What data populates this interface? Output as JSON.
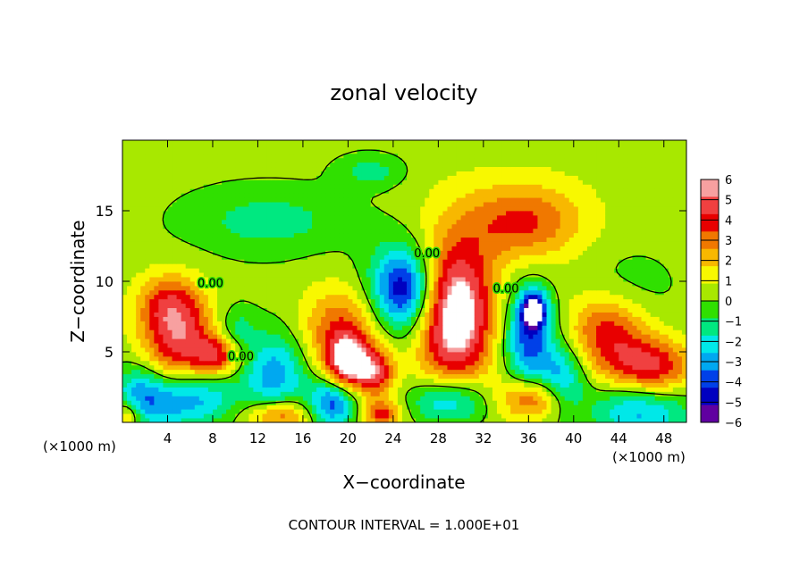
{
  "chart_data": {
    "type": "heatmap",
    "title": "zonal velocity",
    "xlabel": "X−coordinate",
    "ylabel": "Z−coordinate",
    "x_unit_left": "(×1000 m)",
    "x_unit_right": "(×1000 m)",
    "footer": "CONTOUR INTERVAL = 1.000E+01",
    "xlim": [
      0,
      50
    ],
    "ylim": [
      0,
      20
    ],
    "xticks": [
      4,
      8,
      12,
      16,
      20,
      24,
      28,
      32,
      36,
      40,
      44,
      48
    ],
    "yticks": [
      5,
      10,
      15
    ],
    "colorbar": {
      "ticks": [
        6,
        5,
        4,
        3,
        2,
        1,
        0,
        -1,
        -2,
        -3,
        -4,
        -5,
        -6
      ],
      "colors": [
        "#f7a0a0",
        "#f04040",
        "#e80000",
        "#f07800",
        "#f8b800",
        "#f8f800",
        "#a8e800",
        "#30e000",
        "#00e880",
        "#00e8e8",
        "#00a8f0",
        "#0040e8",
        "#0000c0",
        "#6000a0"
      ]
    },
    "contour_labels": [
      {
        "text": "0.00",
        "x": 10.5,
        "y": 4.4
      },
      {
        "text": "0.00",
        "x": 27,
        "y": 11.7
      },
      {
        "text": "0.00",
        "x": 34,
        "y": 9.2
      },
      {
        "text": "0.00",
        "x": 7.8,
        "y": 9.6
      }
    ],
    "features": [
      {
        "u": 5,
        "x": 29.7,
        "y": 8,
        "sx": 2.2,
        "sy": 3.2
      },
      {
        "u": 3,
        "x": 29,
        "y": 6,
        "sx": 2.8,
        "sy": 4.8
      },
      {
        "u": -5,
        "x": 25,
        "y": 9.5,
        "sx": 1.8,
        "sy": 1.9
      },
      {
        "u": -2,
        "x": 24.5,
        "y": 9,
        "sx": 2.6,
        "sy": 3
      },
      {
        "u": 3,
        "x": 35.5,
        "y": 14.2,
        "sx": 3.5,
        "sy": 1.8
      },
      {
        "u": 1,
        "x": 35,
        "y": 14.5,
        "sx": 6,
        "sy": 3
      },
      {
        "u": -1.8,
        "x": 13,
        "y": 14.3,
        "sx": 5,
        "sy": 1.6
      },
      {
        "u": -1.8,
        "x": 22,
        "y": 17.8,
        "sx": 2,
        "sy": 0.8
      },
      {
        "u": -1.5,
        "x": 44,
        "y": 9.3,
        "sx": 3,
        "sy": 2
      },
      {
        "u": -5,
        "x": 36,
        "y": 6,
        "sx": 1.5,
        "sy": 2.5
      },
      {
        "u": -6,
        "x": 36.5,
        "y": 8,
        "sx": 0.8,
        "sy": 0.9
      },
      {
        "u": 4.5,
        "x": 36.5,
        "y": 1.7,
        "sx": 2.2,
        "sy": 1.1
      },
      {
        "u": -4,
        "x": 39,
        "y": 3,
        "sx": 1.5,
        "sy": 1.8
      },
      {
        "u": 4.5,
        "x": 43,
        "y": 6.5,
        "sx": 2.5,
        "sy": 2.2
      },
      {
        "u": 5,
        "x": 47,
        "y": 3.8,
        "sx": 2.5,
        "sy": 1.5
      },
      {
        "u": 5,
        "x": 5,
        "y": 5.8,
        "sx": 2.3,
        "sy": 2.3
      },
      {
        "u": 3,
        "x": 4,
        "y": 8.5,
        "sx": 2,
        "sy": 1.5
      },
      {
        "u": -4,
        "x": 4.8,
        "y": 1.6,
        "sx": 2.5,
        "sy": 1.4
      },
      {
        "u": -3,
        "x": 1.5,
        "y": 2,
        "sx": 1.5,
        "sy": 1.5
      },
      {
        "u": -4,
        "x": 13.5,
        "y": 3.5,
        "sx": 2,
        "sy": 2
      },
      {
        "u": -2,
        "x": 10,
        "y": 6.5,
        "sx": 1.2,
        "sy": 1.2
      },
      {
        "u": 6,
        "x": 20,
        "y": 4.2,
        "sx": 1.3,
        "sy": 1.3
      },
      {
        "u": 4,
        "x": 19.5,
        "y": 6.5,
        "sx": 2.5,
        "sy": 2.2
      },
      {
        "u": -5,
        "x": 18.6,
        "y": 1.4,
        "sx": 1.5,
        "sy": 1.2
      },
      {
        "u": 4.5,
        "x": 22.5,
        "y": 3.5,
        "sx": 1.2,
        "sy": 1.2
      },
      {
        "u": 4,
        "x": 23,
        "y": 0.6,
        "sx": 1.2,
        "sy": 0.7
      },
      {
        "u": -5,
        "x": 29,
        "y": 1.5,
        "sx": 2.5,
        "sy": 1.3
      },
      {
        "u": -4,
        "x": 46,
        "y": 1,
        "sx": 3,
        "sy": 1.5
      },
      {
        "u": 4,
        "x": 14,
        "y": 0.5,
        "sx": 2,
        "sy": 0.8
      },
      {
        "u": 4,
        "x": 8.5,
        "y": 4.8,
        "sx": 1.5,
        "sy": 1
      },
      {
        "u": -1.5,
        "x": 8,
        "y": 2,
        "sx": 2,
        "sy": 1.2
      },
      {
        "u": 3,
        "x": 0.5,
        "y": 0.6,
        "sx": 0.8,
        "sy": 0.7
      }
    ]
  }
}
